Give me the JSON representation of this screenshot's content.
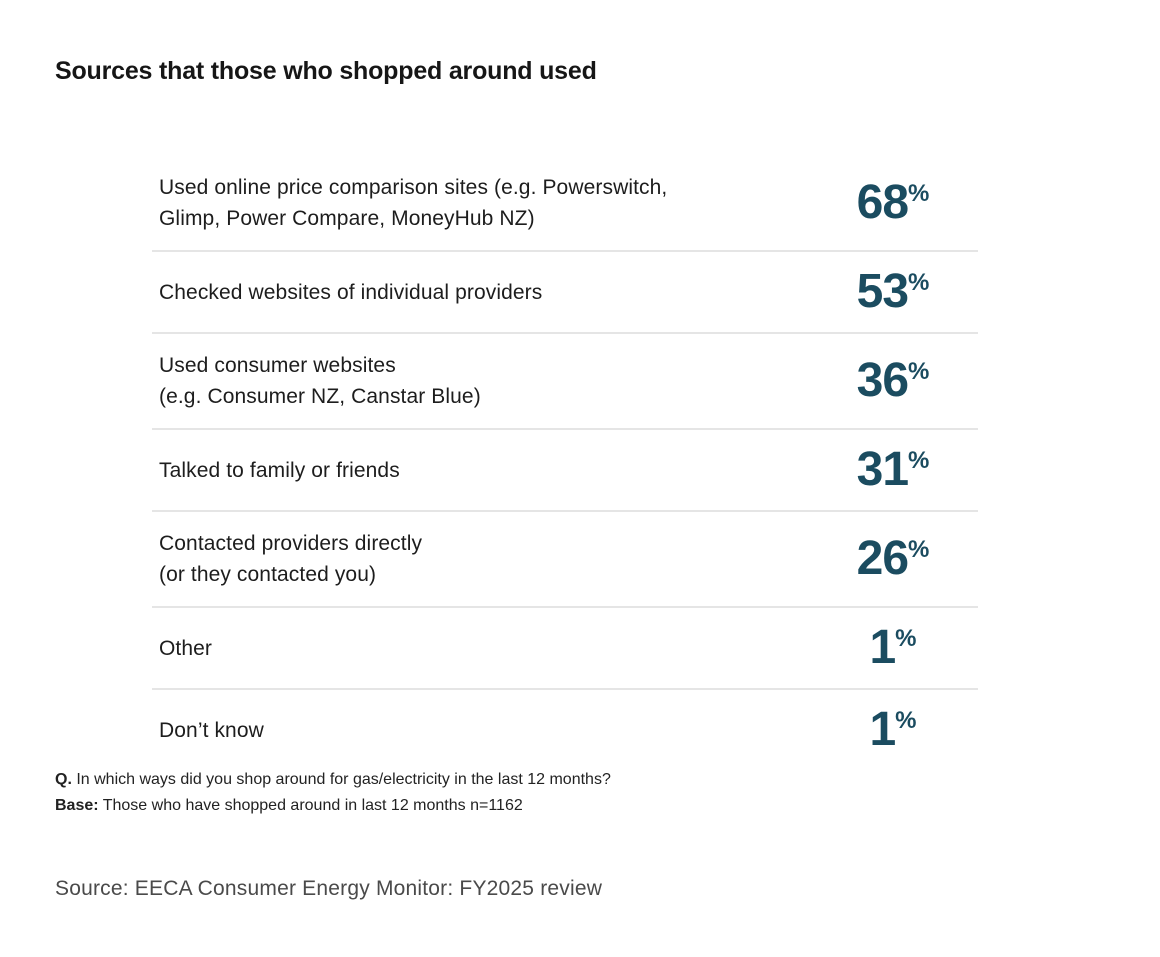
{
  "title": "Sources that those who shopped around used",
  "chart_data": {
    "type": "table",
    "title": "Sources that those who shopped around used",
    "categories": [
      "Used online price comparison sites (e.g. Powerswitch, Glimp, Power Compare, MoneyHub NZ)",
      "Checked websites of individual providers",
      "Used consumer websites (e.g. Consumer NZ, Canstar Blue)",
      "Talked to family or friends",
      "Contacted providers directly (or they contacted you)",
      "Other",
      "Don’t know"
    ],
    "values": [
      68,
      53,
      36,
      31,
      26,
      1,
      1
    ],
    "unit": "%",
    "question": "In which ways did you shop around for gas/electricity in the last 12 months?",
    "base": "Those who have shopped around in last 12 months n=1162",
    "source": "EECA Consumer Energy Monitor: FY2025 review",
    "value_color": "#1b4c60",
    "legend": "none",
    "grid": "row dividers only"
  },
  "table": {
    "rows": [
      {
        "label_lines": [
          "Used online price comparison sites (e.g. Powerswitch,",
          "Glimp, Power Compare, MoneyHub NZ)"
        ],
        "value": "68",
        "suffix": "%"
      },
      {
        "label_lines": [
          "Checked websites of individual providers"
        ],
        "value": "53",
        "suffix": "%"
      },
      {
        "label_lines": [
          "Used consumer websites",
          "(e.g. Consumer NZ, Canstar Blue)"
        ],
        "value": "36",
        "suffix": "%"
      },
      {
        "label_lines": [
          "Talked to family or friends"
        ],
        "value": "31",
        "suffix": "%"
      },
      {
        "label_lines": [
          "Contacted providers directly",
          "(or they contacted you)"
        ],
        "value": "26",
        "suffix": "%"
      },
      {
        "label_lines": [
          "Other"
        ],
        "value": "1",
        "suffix": "%"
      },
      {
        "label_lines": [
          "Don’t know"
        ],
        "value": "1",
        "suffix": "%"
      }
    ]
  },
  "footnote": {
    "question_prefix": "Q.",
    "question_text": " In which ways did you shop around for gas/electricity in the last 12 months?",
    "base_prefix": "Base:",
    "base_text": " Those who have shopped around in last 12 months n=1162"
  },
  "source_line": "Source: EECA Consumer Energy Monitor: FY2025 review",
  "colors": {
    "accent": "#1b4c60",
    "divider": "#e5e5e5",
    "text": "#1d1d1d",
    "muted": "#4a4a4a",
    "background": "#ffffff"
  }
}
